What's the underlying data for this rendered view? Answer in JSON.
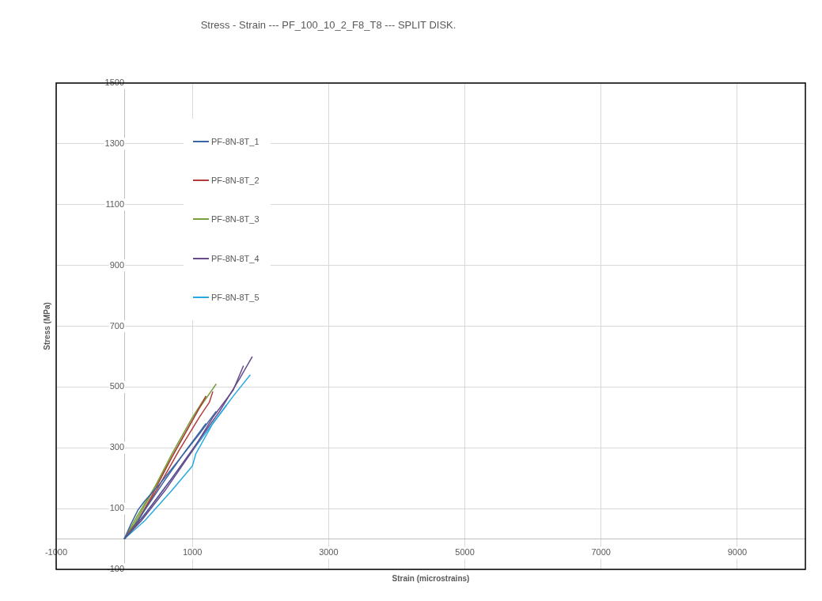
{
  "chart_data": {
    "type": "line",
    "title": "Stress - Strain --- PF_100_10_2_F8_T8 ---  SPLIT DISK.",
    "xlabel": "Strain (microstrains)",
    "ylabel": "Stress (MPa)",
    "xlim": [
      -1000,
      10000
    ],
    "xticks": [
      -1000,
      1000,
      3000,
      5000,
      7000,
      9000
    ],
    "ylim": [
      -100,
      1500
    ],
    "yticks": [
      -100,
      100,
      300,
      500,
      700,
      900,
      1100,
      1300,
      1500
    ],
    "grid": true,
    "legend": "top left",
    "marker": "none",
    "line_style": "solid",
    "series": [
      {
        "name": "PF-8N-8T_1",
        "color": "#3b64a3",
        "x": [
          0,
          100,
          200,
          300,
          500,
          800,
          1100,
          1350
        ],
        "values": [
          0,
          50,
          95,
          125,
          175,
          260,
          345,
          420
        ]
      },
      {
        "color": "#3b64a3",
        "x": [
          0,
          100,
          300,
          600,
          900,
          1200
        ],
        "values": [
          0,
          25,
          95,
          195,
          290,
          380
        ]
      },
      {
        "name": "PF-8N-8T_2",
        "color": "#b23c3a",
        "x": [
          0,
          200,
          500,
          800,
          1100,
          1250,
          1300
        ],
        "values": [
          0,
          60,
          170,
          290,
          400,
          450,
          485
        ]
      },
      {
        "color": "#b23c3a",
        "x": [
          0,
          150,
          400,
          700,
          1000,
          1200
        ],
        "values": [
          0,
          40,
          140,
          270,
          390,
          470
        ]
      },
      {
        "name": "PF-8N-8T_3",
        "color": "#77a03c",
        "x": [
          0,
          200,
          500,
          850,
          1100,
          1350
        ],
        "values": [
          0,
          80,
          190,
          330,
          430,
          510
        ]
      },
      {
        "color": "#77a03c",
        "x": [
          0,
          150,
          400,
          700,
          1000,
          1200
        ],
        "values": [
          0,
          50,
          150,
          280,
          400,
          470
        ]
      },
      {
        "name": "PF-8N-8T_4",
        "color": "#654b8c",
        "x": [
          0,
          300,
          700,
          1050,
          1400,
          1700,
          1880
        ],
        "values": [
          0,
          80,
          200,
          310,
          420,
          530,
          600
        ]
      },
      {
        "color": "#654b8c",
        "x": [
          0,
          250,
          600,
          1000,
          1300,
          1600,
          1750
        ],
        "values": [
          0,
          60,
          160,
          290,
          400,
          490,
          570
        ]
      },
      {
        "name": "PF-8N-8T_5",
        "color": "#29a9e1",
        "x": [
          0,
          300,
          700,
          1000,
          1050,
          1300,
          1600,
          1850
        ],
        "values": [
          0,
          60,
          160,
          240,
          280,
          380,
          470,
          540
        ]
      },
      {
        "color": "#29a9e1",
        "x": [
          0,
          100,
          400,
          800,
          1100,
          1500
        ],
        "values": [
          0,
          25,
          110,
          230,
          320,
          440
        ]
      }
    ]
  }
}
